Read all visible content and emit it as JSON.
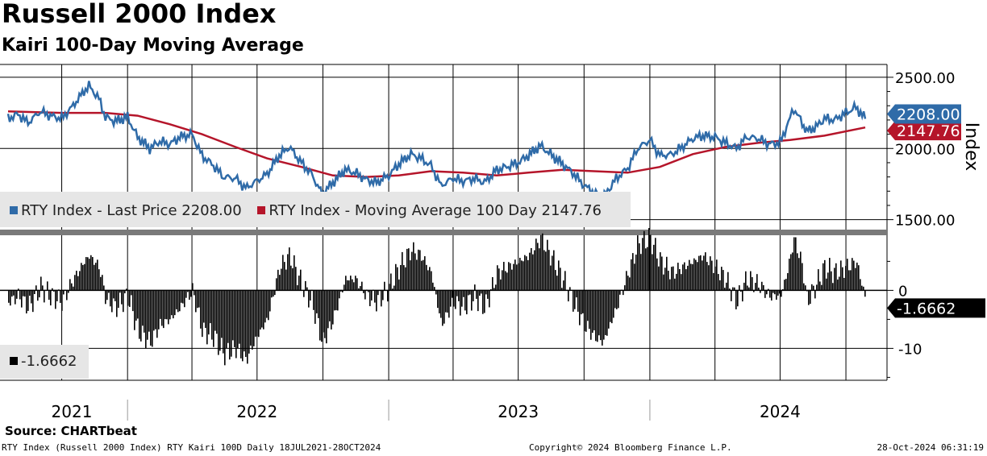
{
  "header": {
    "title": "Russell 2000 Index",
    "subtitle": "Kairi 100-Day Moving Average"
  },
  "source": "Source: CHARTbeat",
  "footer": {
    "left": "RTY Index (Russell 2000 Index) RTY Kairi 100D  Daily 18JUL2021-28OCT2024",
    "center": "Copyright© 2024 Bloomberg Finance L.P.",
    "right": "28-Oct-2024 06:31:19"
  },
  "legend": {
    "price_label": "RTY Index - Last Price 2208.00",
    "ma_label": "RTY Index - Moving Average 100 Day 2147.76",
    "kairi_label": "-1.6662"
  },
  "colors": {
    "price": "#2f6ba8",
    "moving_average": "#b5152a",
    "kairi": "#000000",
    "grid": "#000000"
  },
  "chart_data": [
    {
      "type": "line",
      "title": "Russell 2000 Index",
      "ylabel": "Index",
      "ylim": [
        1430,
        2590
      ],
      "yticks": [
        "2500.00",
        "2000.00",
        "1500.00"
      ],
      "ytick_values": [
        2500,
        2000,
        1500
      ],
      "x_labels": [
        "2021",
        "2022",
        "2023",
        "2024"
      ],
      "x_range": [
        "2021-07-18",
        "2024-10-28"
      ],
      "grid": true,
      "legend_position": "bottom-left",
      "last_value_labels": [
        "2208.00",
        "2147.76"
      ],
      "series": [
        {
          "name": "RTY Index - Last Price",
          "x": [
            "2021-07-18",
            "2021-08-01",
            "2021-08-15",
            "2021-09-01",
            "2021-09-15",
            "2021-10-01",
            "2021-10-15",
            "2021-11-01",
            "2021-11-08",
            "2021-11-22",
            "2021-12-01",
            "2021-12-15",
            "2022-01-01",
            "2022-01-15",
            "2022-02-01",
            "2022-02-15",
            "2022-03-01",
            "2022-03-15",
            "2022-04-01",
            "2022-04-15",
            "2022-05-01",
            "2022-05-15",
            "2022-06-01",
            "2022-06-15",
            "2022-06-30",
            "2022-07-15",
            "2022-08-01",
            "2022-08-15",
            "2022-09-01",
            "2022-09-15",
            "2022-09-30",
            "2022-10-15",
            "2022-11-01",
            "2022-11-15",
            "2022-12-01",
            "2022-12-15",
            "2023-01-01",
            "2023-01-15",
            "2023-02-01",
            "2023-02-15",
            "2023-03-01",
            "2023-03-15",
            "2023-04-01",
            "2023-04-15",
            "2023-05-01",
            "2023-05-15",
            "2023-06-01",
            "2023-06-15",
            "2023-07-01",
            "2023-07-15",
            "2023-08-01",
            "2023-08-15",
            "2023-09-01",
            "2023-09-15",
            "2023-10-01",
            "2023-10-15",
            "2023-10-27",
            "2023-11-15",
            "2023-12-01",
            "2023-12-15",
            "2024-01-01",
            "2024-01-15",
            "2024-02-01",
            "2024-02-15",
            "2024-03-01",
            "2024-03-15",
            "2024-04-01",
            "2024-04-15",
            "2024-05-01",
            "2024-05-15",
            "2024-06-01",
            "2024-06-15",
            "2024-07-01",
            "2024-07-10",
            "2024-07-20",
            "2024-08-01",
            "2024-08-07",
            "2024-08-20",
            "2024-09-01",
            "2024-09-15",
            "2024-10-01",
            "2024-10-15",
            "2024-10-28"
          ],
          "values": [
            2210,
            2240,
            2180,
            2260,
            2230,
            2210,
            2290,
            2400,
            2440,
            2350,
            2220,
            2190,
            2220,
            2080,
            2000,
            2050,
            2030,
            2080,
            2100,
            1950,
            1880,
            1800,
            1790,
            1720,
            1770,
            1820,
            1950,
            2010,
            1900,
            1820,
            1680,
            1760,
            1850,
            1830,
            1780,
            1760,
            1810,
            1890,
            1960,
            1930,
            1880,
            1740,
            1790,
            1770,
            1790,
            1760,
            1850,
            1870,
            1900,
            1950,
            2020,
            1960,
            1890,
            1830,
            1740,
            1690,
            1650,
            1790,
            1860,
            2000,
            2060,
            1950,
            1960,
            2010,
            2070,
            2090,
            2080,
            2040,
            2000,
            2080,
            2070,
            2030,
            2040,
            2150,
            2280,
            2180,
            2120,
            2150,
            2210,
            2200,
            2250,
            2290,
            2208
          ]
        },
        {
          "name": "RTY Index - Moving Average 100 Day",
          "x": [
            "2021-07-18",
            "2021-10-01",
            "2021-12-01",
            "2022-01-15",
            "2022-03-01",
            "2022-04-15",
            "2022-06-01",
            "2022-07-15",
            "2022-09-01",
            "2022-10-15",
            "2022-12-01",
            "2023-01-15",
            "2023-03-01",
            "2023-04-15",
            "2023-06-01",
            "2023-07-15",
            "2023-09-01",
            "2023-10-15",
            "2023-12-01",
            "2024-01-15",
            "2024-03-01",
            "2024-04-15",
            "2024-06-01",
            "2024-07-15",
            "2024-09-01",
            "2024-10-28"
          ],
          "values": [
            2260,
            2250,
            2250,
            2230,
            2170,
            2100,
            2010,
            1930,
            1870,
            1810,
            1800,
            1810,
            1840,
            1830,
            1810,
            1830,
            1850,
            1840,
            1830,
            1870,
            1960,
            2010,
            2040,
            2060,
            2090,
            2147.76
          ]
        }
      ]
    },
    {
      "type": "bar",
      "title": "RTY Kairi 100D",
      "ylim": [
        -15.5,
        9.5
      ],
      "yticks": [
        "0",
        "-10"
      ],
      "ytick_values": [
        0,
        -10
      ],
      "x_labels": [
        "2021",
        "2022",
        "2023",
        "2024"
      ],
      "x_range": [
        "2021-07-18",
        "2024-10-28"
      ],
      "grid": true,
      "legend_position": "bottom-left",
      "last_value_label": "-1.6662",
      "series": [
        {
          "name": "RTY Kairi 100D",
          "x": [
            "2021-07-18",
            "2021-08-01",
            "2021-08-15",
            "2021-09-01",
            "2021-09-15",
            "2021-10-01",
            "2021-10-15",
            "2021-11-01",
            "2021-11-08",
            "2021-11-22",
            "2021-12-01",
            "2021-12-15",
            "2022-01-01",
            "2022-01-15",
            "2022-02-01",
            "2022-02-15",
            "2022-03-01",
            "2022-03-15",
            "2022-04-01",
            "2022-04-15",
            "2022-05-01",
            "2022-05-15",
            "2022-06-01",
            "2022-06-15",
            "2022-06-30",
            "2022-07-15",
            "2022-08-01",
            "2022-08-15",
            "2022-09-01",
            "2022-09-15",
            "2022-09-30",
            "2022-10-15",
            "2022-11-01",
            "2022-11-15",
            "2022-12-01",
            "2022-12-15",
            "2023-01-01",
            "2023-01-15",
            "2023-02-01",
            "2023-02-15",
            "2023-03-01",
            "2023-03-15",
            "2023-04-01",
            "2023-04-15",
            "2023-05-01",
            "2023-05-15",
            "2023-06-01",
            "2023-06-15",
            "2023-07-01",
            "2023-07-15",
            "2023-08-01",
            "2023-08-15",
            "2023-09-01",
            "2023-09-15",
            "2023-10-01",
            "2023-10-15",
            "2023-10-27",
            "2023-11-15",
            "2023-12-01",
            "2023-12-15",
            "2024-01-01",
            "2024-01-15",
            "2024-02-01",
            "2024-02-15",
            "2024-03-01",
            "2024-03-15",
            "2024-04-01",
            "2024-04-15",
            "2024-05-01",
            "2024-05-15",
            "2024-06-01",
            "2024-06-15",
            "2024-07-01",
            "2024-07-10",
            "2024-07-20",
            "2024-08-01",
            "2024-08-07",
            "2024-08-20",
            "2024-09-01",
            "2024-09-15",
            "2024-10-01",
            "2024-10-15",
            "2024-10-28"
          ],
          "values": [
            -2,
            -1,
            -3,
            0.5,
            -1,
            -2,
            1.5,
            5,
            6,
            4,
            -1.5,
            -3,
            -1,
            -7,
            -9,
            -6,
            -5,
            -3,
            0,
            -7,
            -8,
            -11,
            -10,
            -12,
            -8,
            -5,
            4,
            6,
            1,
            -2,
            -9,
            -5,
            2,
            2,
            -1,
            -2,
            0.5,
            4,
            7,
            6,
            3,
            -6,
            -2,
            -3,
            -1,
            -3,
            3,
            4,
            5,
            6,
            9,
            6,
            2,
            -2,
            -6,
            -8,
            -9,
            -3,
            3,
            8,
            9,
            5,
            3,
            4,
            5,
            6,
            4,
            2,
            -2,
            2,
            1,
            -1,
            -1,
            3,
            9,
            4,
            -2,
            1,
            4,
            3,
            4,
            5,
            -1.6662
          ]
        }
      ]
    }
  ]
}
